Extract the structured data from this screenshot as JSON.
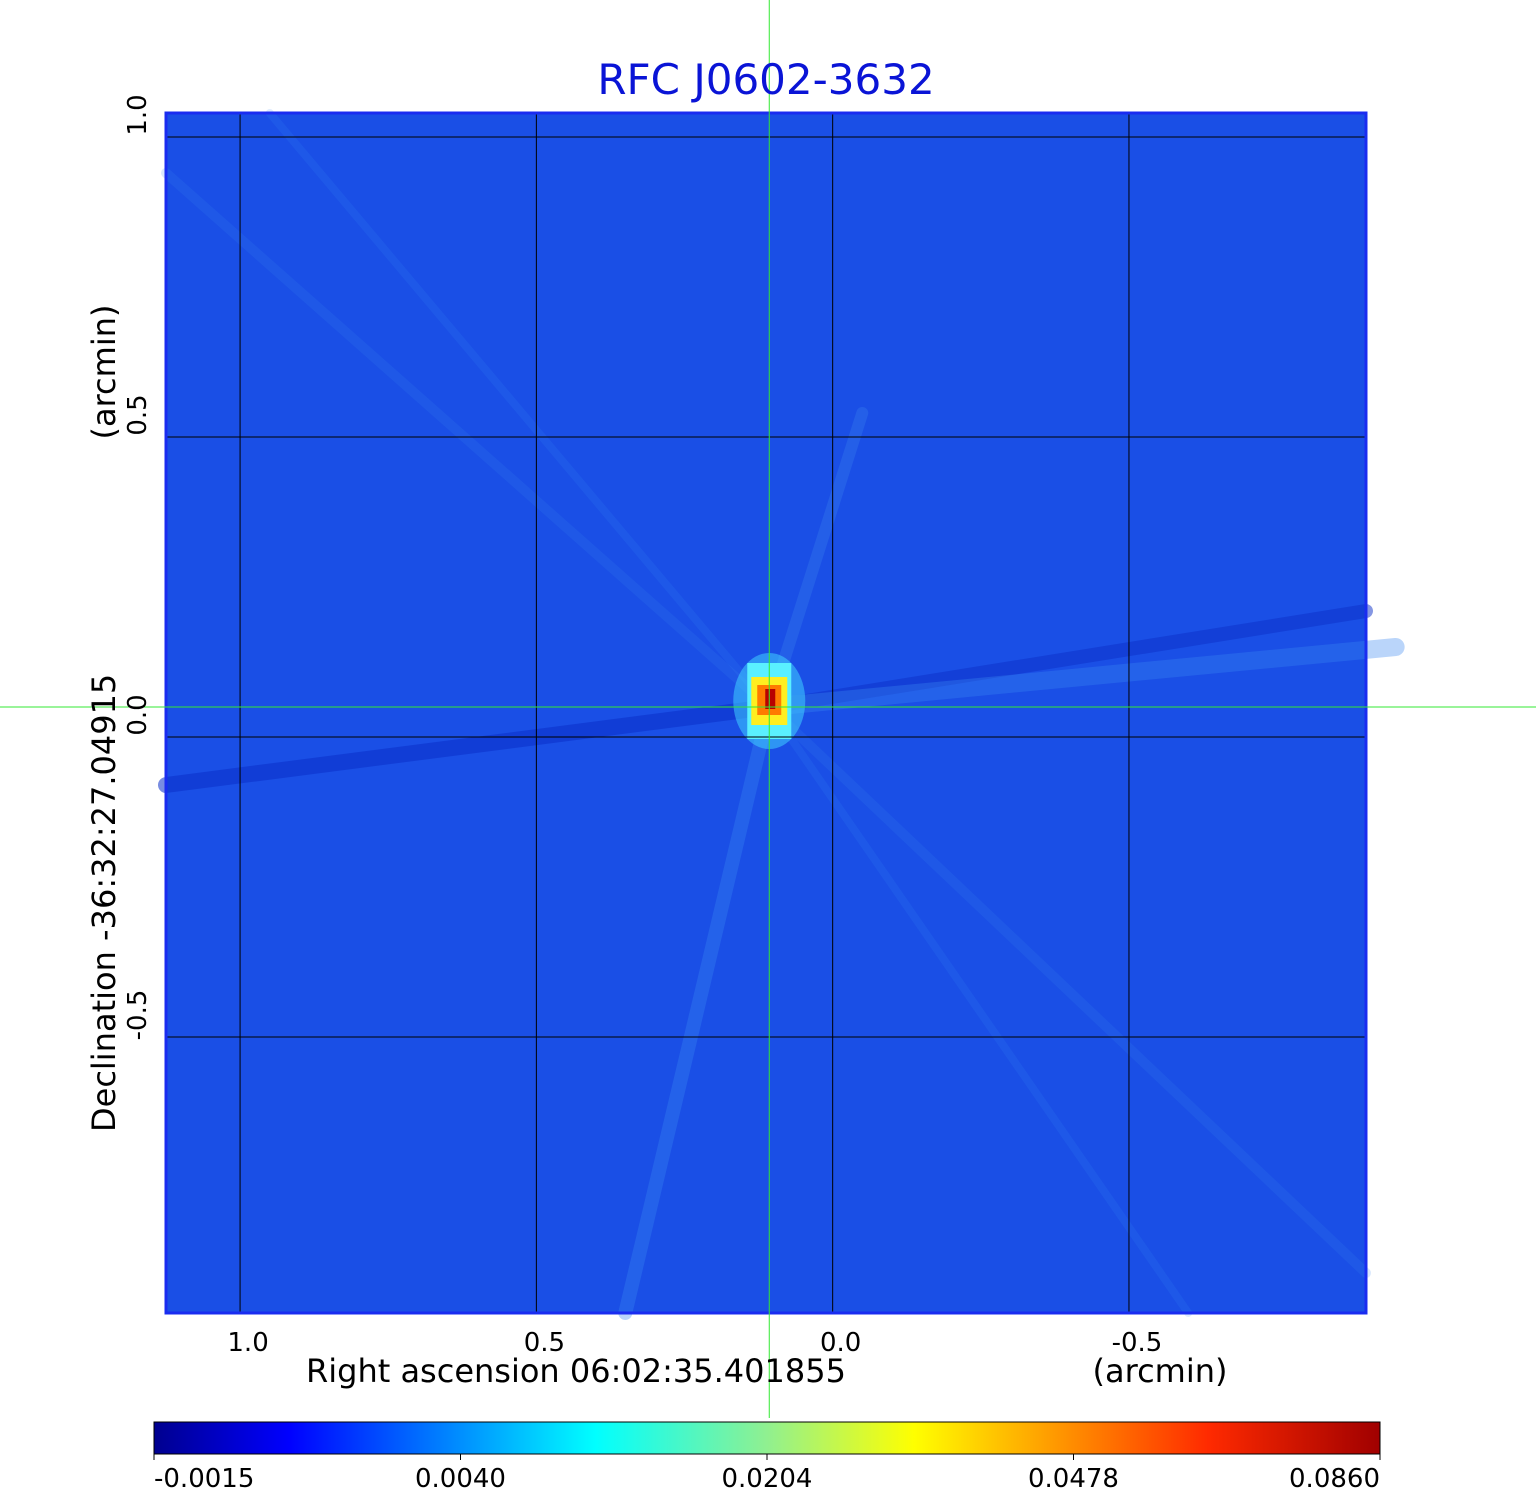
{
  "chart_data": {
    "type": "heatmap",
    "title": "RFC J0602-3632",
    "title_color": "#0a14d6",
    "xlabel": "Right ascension  06:02:35.401855",
    "xunit": "(arcmin)",
    "ylabel": "Declination  -36:32:27.04915",
    "yunit": "(arcmin)",
    "x_ticks": [
      {
        "value": 1.0,
        "label": "1.0"
      },
      {
        "value": 0.5,
        "label": "0.5"
      },
      {
        "value": 0.0,
        "label": "0.0"
      },
      {
        "value": -0.5,
        "label": "-0.5"
      }
    ],
    "y_ticks": [
      {
        "value": 1.0,
        "label": "1.0"
      },
      {
        "value": 0.5,
        "label": "0.5"
      },
      {
        "value": 0.0,
        "label": "0.0"
      },
      {
        "value": -0.5,
        "label": "-0.5"
      }
    ],
    "xlim": [
      1.125,
      -0.9
    ],
    "ylim": [
      -0.96,
      1.04
    ],
    "grid": true,
    "crosshair": {
      "x": 0.107,
      "y": 0.05,
      "color": "#33e833"
    },
    "source_peak": {
      "x": 0.107,
      "y": 0.06,
      "value": 0.086
    },
    "colorbar": {
      "colormap": "jet",
      "ticks": [
        "-0.0015",
        "0.0040",
        "0.0204",
        "0.0478",
        "0.0860"
      ],
      "range": [
        -0.0015,
        0.086
      ]
    },
    "colors": {
      "background_blue": "#1a4fe6",
      "frame": "#1a2cf0"
    }
  }
}
